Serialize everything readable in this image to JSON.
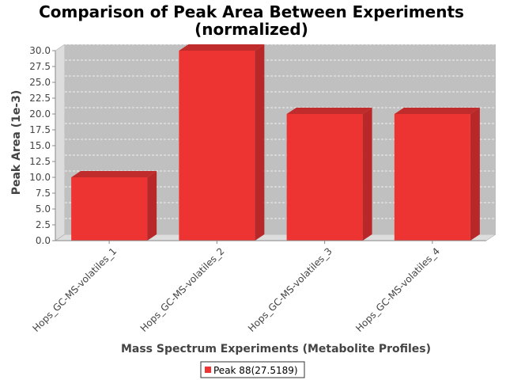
{
  "chart_data": {
    "type": "bar",
    "title_lines": [
      "Comparison of Peak Area Between Experiments",
      "(normalized)"
    ],
    "xlabel": "Mass Spectrum Experiments (Metabolite Profiles)",
    "ylabel": "Peak Area (1e-3)",
    "categories": [
      "Hops_GC-MS-volatiles_1",
      "Hops_GC-MS-volatiles_2",
      "Hops_GC-MS-volatiles_3",
      "Hops_GC-MS-volatiles_4"
    ],
    "series": [
      {
        "name": "Peak 88(27.5189)",
        "values": [
          10.0,
          30.0,
          20.0,
          20.0
        ],
        "color": "#ee3333"
      }
    ],
    "ylim": [
      0,
      30
    ],
    "yticks": [
      "0.0",
      "2.5",
      "5.0",
      "7.5",
      "10.0",
      "12.5",
      "15.0",
      "17.5",
      "20.0",
      "22.5",
      "25.0",
      "27.5",
      "30.0"
    ],
    "grid": true,
    "legend_position": "bottom-center",
    "colors": {
      "plot_bg": "#c0c0c0",
      "wall": "#dddddd",
      "grid": "#ffffff"
    }
  }
}
